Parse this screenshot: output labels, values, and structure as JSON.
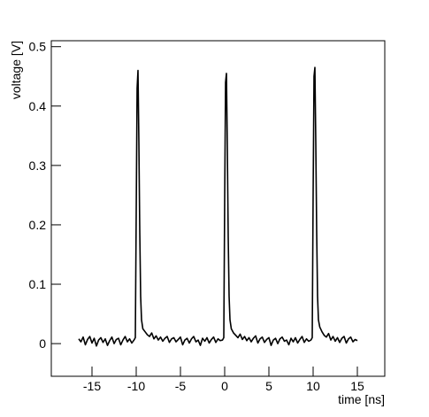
{
  "chart_data": {
    "type": "line",
    "x_label": "time [ns]",
    "y_label": "voltage [V]",
    "xlim": [
      -19.6,
      18.1
    ],
    "ylim": [
      -0.055,
      0.51
    ],
    "xticks": [
      -15,
      -10,
      -5,
      0,
      5,
      10,
      15
    ],
    "yticks": [
      0,
      0.1,
      0.2,
      0.3,
      0.4,
      0.5
    ],
    "series": [
      {
        "color": "#000000",
        "x": [
          -16.5,
          -16.25,
          -16,
          -15.75,
          -15.5,
          -15.25,
          -15,
          -14.75,
          -14.5,
          -14.25,
          -14,
          -13.75,
          -13.5,
          -13.25,
          -13,
          -12.75,
          -12.5,
          -12.25,
          -12,
          -11.75,
          -11.5,
          -11.25,
          -11,
          -10.75,
          -10.5,
          -10.25,
          -10.1,
          -10,
          -9.9,
          -9.8,
          -9.7,
          -9.6,
          -9.5,
          -9.4,
          -9.25,
          -9,
          -8.75,
          -8.5,
          -8.25,
          -8,
          -7.75,
          -7.5,
          -7.25,
          -7,
          -6.75,
          -6.5,
          -6.25,
          -6,
          -5.75,
          -5.5,
          -5.25,
          -5,
          -4.75,
          -4.5,
          -4.25,
          -4,
          -3.75,
          -3.5,
          -3.25,
          -3,
          -2.75,
          -2.5,
          -2.25,
          -2,
          -1.75,
          -1.5,
          -1.25,
          -1,
          -0.75,
          -0.5,
          -0.25,
          -0.1,
          0,
          0.1,
          0.2,
          0.3,
          0.4,
          0.5,
          0.6,
          0.75,
          1,
          1.25,
          1.5,
          1.75,
          2,
          2.25,
          2.5,
          2.75,
          3,
          3.25,
          3.5,
          3.75,
          4,
          4.25,
          4.5,
          4.75,
          5,
          5.25,
          5.5,
          5.75,
          6,
          6.25,
          6.5,
          6.75,
          7,
          7.25,
          7.5,
          7.75,
          8,
          8.25,
          8.5,
          8.75,
          9,
          9.25,
          9.5,
          9.75,
          9.9,
          10,
          10.1,
          10.2,
          10.3,
          10.4,
          10.5,
          10.6,
          10.75,
          11,
          11.25,
          11.5,
          11.75,
          12,
          12.25,
          12.5,
          12.75,
          13,
          13.25,
          13.5,
          13.75,
          14,
          14.25,
          14.5,
          14.75,
          15
        ],
        "values": [
          0.008,
          0.003,
          0.011,
          -0.002,
          0.007,
          0.012,
          0.001,
          0.009,
          -0.004,
          0.006,
          0.01,
          0.002,
          0.008,
          -0.003,
          0.005,
          0.011,
          0.0,
          0.007,
          0.009,
          -0.002,
          0.006,
          0.012,
          0.003,
          0.008,
          0.001,
          0.006,
          0.01,
          0.22,
          0.43,
          0.46,
          0.34,
          0.19,
          0.08,
          0.04,
          0.025,
          0.02,
          0.015,
          0.012,
          0.018,
          0.008,
          0.013,
          0.006,
          0.011,
          0.004,
          0.009,
          0.012,
          0.002,
          0.008,
          0.01,
          0.003,
          0.007,
          0.011,
          -0.002,
          0.006,
          0.009,
          0.001,
          0.008,
          0.012,
          0.003,
          0.006,
          -0.003,
          0.009,
          0.004,
          0.01,
          0.001,
          0.007,
          0.011,
          0.002,
          0.008,
          0.005,
          0.006,
          0.01,
          0.24,
          0.44,
          0.455,
          0.33,
          0.18,
          0.08,
          0.04,
          0.025,
          0.018,
          0.014,
          0.01,
          0.016,
          0.007,
          0.012,
          0.005,
          0.01,
          0.003,
          0.009,
          0.013,
          0.001,
          0.008,
          0.011,
          0.002,
          0.007,
          0.01,
          -0.003,
          0.006,
          0.009,
          0.0,
          0.008,
          0.011,
          0.004,
          0.006,
          -0.002,
          0.009,
          0.003,
          0.01,
          0.001,
          0.007,
          0.012,
          0.002,
          0.008,
          0.004,
          0.006,
          0.01,
          0.25,
          0.45,
          0.465,
          0.34,
          0.19,
          0.08,
          0.04,
          0.028,
          0.02,
          0.014,
          0.011,
          0.017,
          0.006,
          0.012,
          0.004,
          0.01,
          0.002,
          0.009,
          0.012,
          0.001,
          0.008,
          0.011,
          0.003,
          0.007,
          0.005
        ]
      }
    ]
  }
}
